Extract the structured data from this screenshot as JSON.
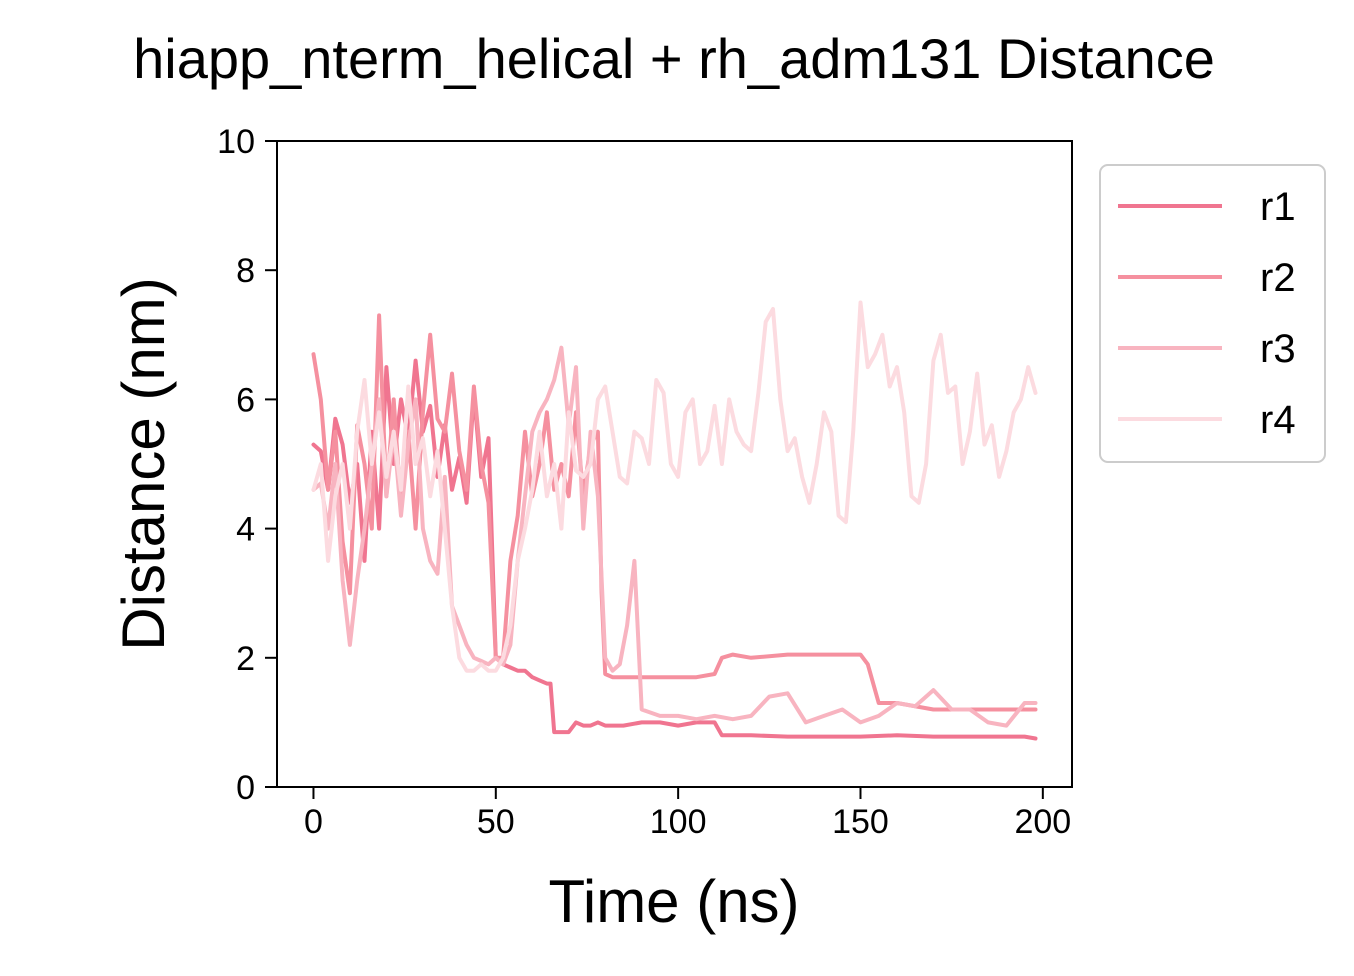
{
  "chart_data": {
    "type": "line",
    "title": "hiapp_nterm_helical + rh_adm131 Distance",
    "xlabel": "Time (ns)",
    "ylabel": "Distance (nm)",
    "xlim": [
      -10,
      208
    ],
    "ylim": [
      0,
      10
    ],
    "x_ticks": [
      0,
      50,
      100,
      150,
      200
    ],
    "x_tick_labels": [
      "0",
      "50",
      "100",
      "150",
      "200"
    ],
    "y_ticks": [
      0,
      2,
      4,
      6,
      8,
      10
    ],
    "y_tick_labels": [
      "0",
      "2",
      "4",
      "6",
      "8",
      "10"
    ],
    "grid": false,
    "legend_position": "outside right, top",
    "series": [
      {
        "name": "r1",
        "color": "#f07590",
        "x": [
          0,
          2,
          4,
          6,
          8,
          10,
          12,
          14,
          16,
          18,
          20,
          22,
          24,
          26,
          28,
          30,
          32,
          34,
          36,
          38,
          40,
          42,
          44,
          46,
          48,
          50,
          52,
          54,
          56,
          58,
          60,
          62,
          64,
          65,
          66,
          68,
          70,
          72,
          74,
          76,
          78,
          80,
          85,
          90,
          95,
          100,
          105,
          110,
          112,
          120,
          130,
          140,
          150,
          160,
          170,
          180,
          190,
          195,
          198
        ],
        "y": [
          5.3,
          5.2,
          4.6,
          5.7,
          5.3,
          4.4,
          5.0,
          3.5,
          5.5,
          4.0,
          6.5,
          5.0,
          6.0,
          5.4,
          6.6,
          5.5,
          5.9,
          4.8,
          5.6,
          4.6,
          5.1,
          4.4,
          6.1,
          4.8,
          5.4,
          2.0,
          1.9,
          1.85,
          1.8,
          1.8,
          1.7,
          1.65,
          1.6,
          1.6,
          0.85,
          0.85,
          0.85,
          1.0,
          0.95,
          0.95,
          1.0,
          0.95,
          0.95,
          1.0,
          1.0,
          0.95,
          1.0,
          1.0,
          0.8,
          0.8,
          0.78,
          0.78,
          0.78,
          0.8,
          0.78,
          0.78,
          0.78,
          0.78,
          0.75
        ]
      },
      {
        "name": "r2",
        "color": "#f5909f",
        "x": [
          0,
          2,
          4,
          6,
          8,
          10,
          12,
          14,
          16,
          18,
          20,
          22,
          24,
          26,
          28,
          30,
          32,
          34,
          36,
          38,
          40,
          42,
          44,
          46,
          48,
          50,
          52,
          54,
          56,
          58,
          60,
          62,
          64,
          66,
          68,
          70,
          72,
          74,
          76,
          78,
          79,
          80,
          82,
          85,
          90,
          95,
          100,
          105,
          110,
          112,
          115,
          120,
          130,
          140,
          150,
          152,
          155,
          160,
          170,
          180,
          190,
          195,
          198
        ],
        "y": [
          6.7,
          6.0,
          4.6,
          5.5,
          3.8,
          3.0,
          5.6,
          5.0,
          4.0,
          7.3,
          4.5,
          6.0,
          4.3,
          5.5,
          4.0,
          5.8,
          7.0,
          5.7,
          5.5,
          6.4,
          5.2,
          4.6,
          6.2,
          5.0,
          4.4,
          2.0,
          2.0,
          3.5,
          4.2,
          5.5,
          4.5,
          5.0,
          5.8,
          4.6,
          5.0,
          4.5,
          5.8,
          4.5,
          5.3,
          5.5,
          3.0,
          1.75,
          1.7,
          1.7,
          1.7,
          1.7,
          1.7,
          1.7,
          1.75,
          2.0,
          2.05,
          2.0,
          2.05,
          2.05,
          2.05,
          1.9,
          1.3,
          1.3,
          1.2,
          1.2,
          1.2,
          1.2,
          1.2
        ]
      },
      {
        "name": "r3",
        "color": "#f8b4c0",
        "x": [
          0,
          2,
          4,
          6,
          8,
          10,
          12,
          14,
          16,
          18,
          20,
          22,
          24,
          26,
          28,
          30,
          32,
          34,
          36,
          38,
          40,
          42,
          44,
          46,
          48,
          50,
          52,
          54,
          56,
          58,
          60,
          62,
          64,
          66,
          68,
          70,
          72,
          74,
          76,
          78,
          80,
          82,
          84,
          86,
          88,
          90,
          95,
          100,
          105,
          110,
          115,
          120,
          125,
          130,
          135,
          140,
          145,
          150,
          155,
          160,
          165,
          170,
          175,
          180,
          185,
          190,
          195,
          198
        ],
        "y": [
          4.6,
          4.7,
          4.0,
          5.0,
          3.2,
          2.2,
          3.2,
          4.0,
          5.0,
          6.0,
          4.5,
          5.5,
          4.2,
          5.3,
          6.0,
          4.0,
          3.5,
          3.3,
          4.8,
          2.8,
          2.5,
          2.2,
          2.0,
          1.95,
          1.9,
          2.0,
          1.9,
          2.2,
          3.5,
          4.5,
          5.5,
          5.8,
          6.0,
          6.3,
          6.8,
          5.6,
          6.5,
          4.0,
          5.5,
          4.5,
          2.0,
          1.8,
          1.9,
          2.5,
          3.5,
          1.2,
          1.1,
          1.1,
          1.05,
          1.1,
          1.05,
          1.1,
          1.4,
          1.45,
          1.0,
          1.1,
          1.2,
          1.0,
          1.1,
          1.3,
          1.25,
          1.5,
          1.2,
          1.2,
          1.0,
          0.95,
          1.3,
          1.3
        ]
      },
      {
        "name": "r4",
        "color": "#fcdbe0",
        "x": [
          0,
          2,
          4,
          6,
          8,
          10,
          12,
          14,
          16,
          18,
          20,
          22,
          24,
          26,
          28,
          30,
          32,
          34,
          36,
          38,
          40,
          42,
          44,
          46,
          48,
          50,
          52,
          54,
          56,
          58,
          60,
          62,
          64,
          66,
          68,
          70,
          72,
          74,
          76,
          78,
          80,
          82,
          84,
          86,
          88,
          90,
          92,
          94,
          96,
          98,
          100,
          102,
          104,
          106,
          108,
          110,
          112,
          114,
          116,
          118,
          120,
          122,
          124,
          126,
          128,
          130,
          132,
          134,
          136,
          138,
          140,
          142,
          144,
          146,
          148,
          150,
          152,
          154,
          156,
          158,
          160,
          162,
          164,
          166,
          168,
          170,
          172,
          174,
          176,
          178,
          180,
          182,
          184,
          186,
          188,
          190,
          192,
          194,
          196,
          198
        ],
        "y": [
          4.6,
          5.0,
          3.5,
          4.5,
          5.0,
          4.0,
          5.5,
          6.3,
          5.0,
          5.8,
          4.8,
          5.5,
          4.6,
          6.2,
          5.0,
          5.4,
          4.5,
          5.2,
          4.0,
          2.8,
          2.0,
          1.8,
          1.8,
          1.9,
          1.8,
          1.8,
          2.0,
          2.5,
          3.5,
          4.0,
          4.6,
          5.5,
          4.5,
          5.0,
          4.0,
          5.8,
          4.9,
          4.8,
          5.0,
          6.0,
          6.2,
          5.5,
          4.8,
          4.7,
          5.5,
          5.4,
          5.0,
          6.3,
          6.1,
          5.0,
          4.8,
          5.8,
          6.0,
          5.0,
          5.2,
          5.9,
          5.0,
          6.0,
          5.5,
          5.3,
          5.2,
          6.1,
          7.2,
          7.4,
          6.0,
          5.2,
          5.4,
          4.8,
          4.4,
          5.0,
          5.8,
          5.5,
          4.2,
          4.1,
          5.5,
          7.5,
          6.5,
          6.7,
          7.0,
          6.2,
          6.5,
          5.8,
          4.5,
          4.4,
          5.0,
          6.6,
          7.0,
          6.1,
          6.2,
          5.0,
          5.5,
          6.4,
          5.3,
          5.6,
          4.8,
          5.2,
          5.8,
          6.0,
          6.5,
          6.1
        ]
      }
    ]
  }
}
